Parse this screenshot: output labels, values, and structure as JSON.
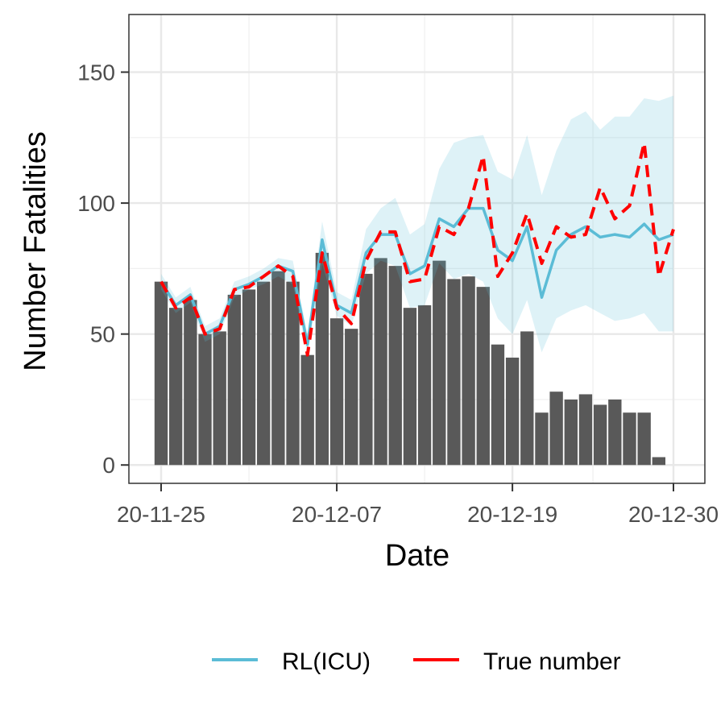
{
  "chart_data": {
    "type": "bar",
    "xlabel": "Date",
    "ylabel": "Number Fatalities",
    "ylim": [
      -7,
      172
    ],
    "yticks": [
      0,
      50,
      100,
      150
    ],
    "x_tick_labels": [
      {
        "index": 0,
        "label": "20-11-25"
      },
      {
        "index": 12,
        "label": "20-12-07"
      },
      {
        "index": 24,
        "label": "20-12-19"
      },
      {
        "index": 35,
        "label": "20-12-30"
      }
    ],
    "grid": true,
    "legend_position": "bottom",
    "bars": {
      "color": "#595959",
      "values": [
        70,
        60,
        63,
        50,
        51,
        65,
        67,
        70,
        74,
        70,
        42,
        81,
        56,
        52,
        73,
        79,
        76,
        60,
        61,
        78,
        71,
        72,
        68,
        46,
        41,
        51,
        20,
        28,
        25,
        27,
        23,
        25,
        20,
        20,
        3
      ]
    },
    "series": [
      {
        "name": "RL(ICU)",
        "color": "#5bbcd6",
        "style": "solid",
        "values": [
          70,
          61,
          65,
          50,
          53,
          67,
          69,
          72,
          76,
          74,
          46,
          86,
          61,
          58,
          81,
          88,
          88,
          73,
          76,
          94,
          91,
          98,
          98,
          82,
          78,
          91,
          64,
          82,
          88,
          91,
          87,
          88,
          87,
          92,
          86,
          88
        ],
        "band_lower": [
          67,
          58,
          62,
          47,
          50,
          64,
          67,
          69,
          72,
          69,
          42,
          77,
          57,
          53,
          73,
          78,
          76,
          60,
          61,
          77,
          71,
          73,
          70,
          56,
          50,
          63,
          43,
          56,
          59,
          61,
          58,
          55,
          56,
          58,
          51,
          51
        ],
        "band_upper": [
          73,
          64,
          68,
          53,
          56,
          70,
          72,
          75,
          79,
          78,
          50,
          93,
          66,
          63,
          90,
          98,
          102,
          88,
          92,
          113,
          123,
          125,
          126,
          112,
          109,
          126,
          103,
          120,
          132,
          135,
          128,
          133,
          133,
          140,
          139,
          141
        ]
      },
      {
        "name": "True number",
        "color": "#ff0000",
        "style": "dashed",
        "values": [
          70,
          60,
          64,
          50,
          52,
          67,
          68,
          72,
          76,
          72,
          42,
          81,
          60,
          54,
          78,
          89,
          89,
          70,
          71,
          91,
          88,
          98,
          118,
          72,
          81,
          96,
          77,
          91,
          87,
          88,
          106,
          94,
          99,
          123,
          72,
          90
        ]
      }
    ]
  }
}
